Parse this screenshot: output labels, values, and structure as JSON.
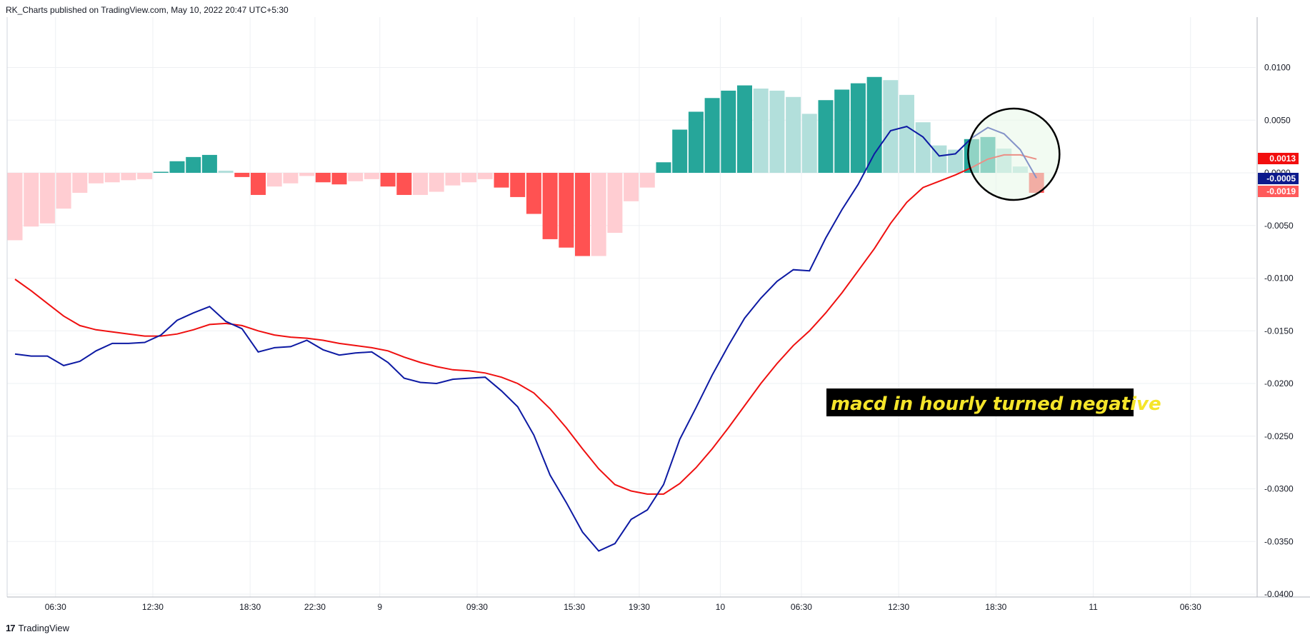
{
  "header": {
    "text": "RK_Charts published on TradingView.com, May 10, 2022 20:47 UTC+5:30"
  },
  "footer": {
    "logo_mark": "17",
    "brand": "TradingView"
  },
  "chart_data": {
    "type": "bar",
    "ylim": [
      -0.04,
      0.01
    ],
    "y_ticks": [
      "0.0100",
      "0.0050",
      "0.0000",
      "-0.0050",
      "-0.0100",
      "-0.0150",
      "-0.0200",
      "-0.0250",
      "-0.0300",
      "-0.0350",
      "-0.0400"
    ],
    "y_tick_values": [
      0.01,
      0.005,
      0.0,
      -0.005,
      -0.01,
      -0.015,
      -0.02,
      -0.025,
      -0.03,
      -0.035,
      -0.04
    ],
    "x_ticks": [
      "06:30",
      "12:30",
      "18:30",
      "22:30",
      "9",
      "09:30",
      "15:30",
      "19:30",
      "10",
      "06:30",
      "12:30",
      "18:30",
      "11",
      "06:30"
    ],
    "x_tick_index": [
      2.5,
      8.5,
      14.5,
      18.5,
      22.5,
      28.5,
      34.5,
      38.5,
      43.5,
      48.5,
      54.5,
      60.5,
      66.5,
      72.5
    ],
    "grid": true,
    "colors": {
      "hist_strong_pos": "#26a69a",
      "hist_weak_pos": "#b2dfdb",
      "hist_strong_neg": "#ff5252",
      "hist_weak_neg": "#ffcdd2",
      "macd": "#0d1aa3",
      "signal": "#ef1010",
      "annotation_bg": "#000000",
      "annotation_text": "#f5e52a",
      "circle_fill": "#e8f8e8",
      "circle_stroke": "#000000"
    },
    "histogram": [
      -0.0064,
      -0.0051,
      -0.0048,
      -0.0034,
      -0.0019,
      -0.001,
      -0.0009,
      -0.0007,
      -0.0006,
      0.0001,
      0.0011,
      0.0015,
      0.0017,
      0.0002,
      -0.0004,
      -0.0021,
      -0.0013,
      -0.001,
      -0.0003,
      -0.0009,
      -0.0011,
      -0.0008,
      -0.0006,
      -0.0013,
      -0.0021,
      -0.0021,
      -0.0018,
      -0.0012,
      -0.0009,
      -0.0006,
      -0.0014,
      -0.0023,
      -0.0039,
      -0.0063,
      -0.0071,
      -0.0079,
      -0.0079,
      -0.0057,
      -0.0027,
      -0.0014,
      0.001,
      0.0041,
      0.0058,
      0.0071,
      0.0078,
      0.0083,
      0.008,
      0.0078,
      0.0072,
      0.0056,
      0.0069,
      0.0079,
      0.0085,
      0.0091,
      0.0088,
      0.0074,
      0.0048,
      0.0026,
      0.0022,
      0.0032,
      0.0034,
      0.0023,
      0.0006,
      -0.0019
    ],
    "hist_states": [
      "wn",
      "wn",
      "wn",
      "wn",
      "wn",
      "wn",
      "wn",
      "wn",
      "wn",
      "sp",
      "sp",
      "sp",
      "sp",
      "wp",
      "sn",
      "sn",
      "wn",
      "wn",
      "wn",
      "sn",
      "sn",
      "wn",
      "wn",
      "sn",
      "sn",
      "wn",
      "wn",
      "wn",
      "wn",
      "wn",
      "sn",
      "sn",
      "sn",
      "sn",
      "sn",
      "sn",
      "wn",
      "wn",
      "wn",
      "wn",
      "sp",
      "sp",
      "sp",
      "sp",
      "sp",
      "sp",
      "wp",
      "wp",
      "wp",
      "wp",
      "sp",
      "sp",
      "sp",
      "sp",
      "wp",
      "wp",
      "wp",
      "wp",
      "wp",
      "sp",
      "sp",
      "wp",
      "wp",
      "sn"
    ],
    "series": [
      {
        "values": [
          -0.0172,
          -0.0174,
          -0.0174,
          -0.0183,
          -0.0179,
          -0.0169,
          -0.0162,
          -0.0162,
          -0.0161,
          -0.0154,
          -0.014,
          -0.0133,
          -0.0127,
          -0.0141,
          -0.0148,
          -0.017,
          -0.0166,
          -0.0165,
          -0.0159,
          -0.0168,
          -0.0173,
          -0.0171,
          -0.017,
          -0.018,
          -0.0195,
          -0.0199,
          -0.02,
          -0.0196,
          -0.0195,
          -0.0194,
          -0.0207,
          -0.0222,
          -0.0249,
          -0.0287,
          -0.0313,
          -0.0341,
          -0.0359,
          -0.0352,
          -0.0329,
          -0.032,
          -0.0296,
          -0.0253,
          -0.0223,
          -0.0192,
          -0.0164,
          -0.0138,
          -0.0119,
          -0.0103,
          -0.0092,
          -0.0093,
          -0.0062,
          -0.0035,
          -0.0011,
          0.0018,
          0.004,
          0.0044,
          0.0034,
          0.0016,
          0.0018,
          0.0033,
          0.0043,
          0.0037,
          0.0022,
          -0.0005
        ]
      },
      {
        "values": [
          -0.0101,
          -0.0112,
          -0.0124,
          -0.0136,
          -0.0145,
          -0.0149,
          -0.0151,
          -0.0153,
          -0.0155,
          -0.0155,
          -0.0153,
          -0.0149,
          -0.0144,
          -0.0143,
          -0.0145,
          -0.015,
          -0.0154,
          -0.0156,
          -0.0157,
          -0.0159,
          -0.0162,
          -0.0164,
          -0.0166,
          -0.0169,
          -0.0175,
          -0.018,
          -0.0184,
          -0.0187,
          -0.0188,
          -0.019,
          -0.0194,
          -0.02,
          -0.0209,
          -0.0224,
          -0.0242,
          -0.0262,
          -0.0281,
          -0.0296,
          -0.0302,
          -0.0305,
          -0.0305,
          -0.0295,
          -0.028,
          -0.0262,
          -0.0242,
          -0.0221,
          -0.02,
          -0.0181,
          -0.0164,
          -0.015,
          -0.0133,
          -0.0114,
          -0.0093,
          -0.0072,
          -0.0048,
          -0.0028,
          -0.0014,
          -0.0008,
          -0.0002,
          0.0005,
          0.0013,
          0.0017,
          0.0017,
          0.0013
        ]
      }
    ],
    "last_values": [
      {
        "label": "0.0013",
        "value": 0.0013,
        "color": "#f20e0e"
      },
      {
        "label": "-0.0005",
        "value": -0.0005,
        "color": "#0d1a8c"
      },
      {
        "label": "-0.0019",
        "value": -0.0019,
        "color": "#ff5a5a"
      }
    ],
    "annotation": {
      "text": "macd in hourly turned negative"
    }
  }
}
